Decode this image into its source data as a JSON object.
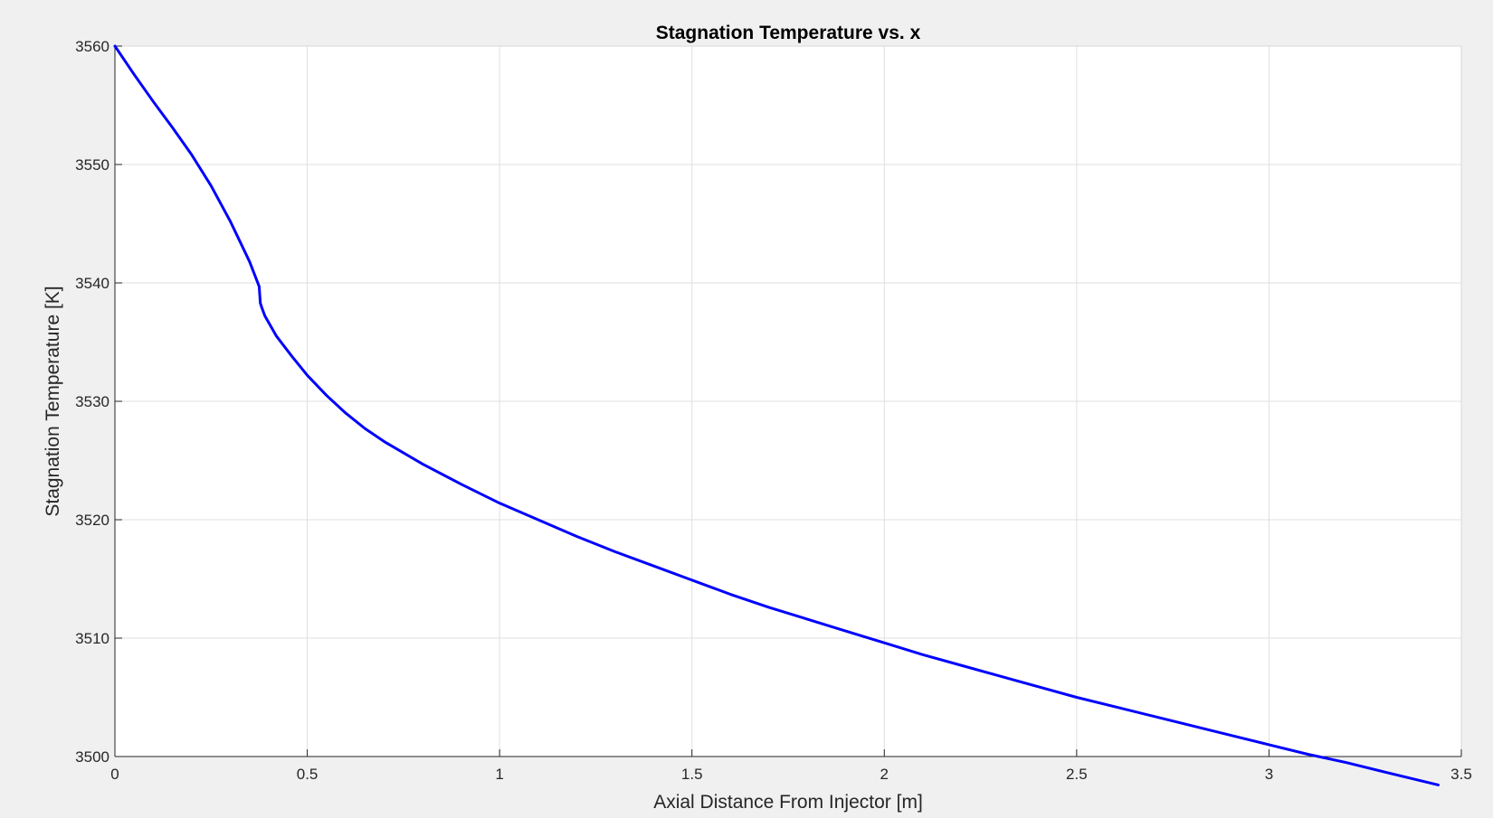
{
  "chart_data": {
    "type": "line",
    "title": "Stagnation Temperature vs. x",
    "xlabel": "Axial Distance From Injector [m]",
    "ylabel": "Stagnation Temperature [K]",
    "xlim": [
      0,
      3.5
    ],
    "ylim": [
      3500,
      3560
    ],
    "xticks": [
      0,
      0.5,
      1,
      1.5,
      2,
      2.5,
      3,
      3.5
    ],
    "xtick_labels": [
      "0",
      "0.5",
      "1",
      "1.5",
      "2",
      "2.5",
      "3",
      "3.5"
    ],
    "yticks": [
      3500,
      3510,
      3520,
      3530,
      3540,
      3550,
      3560
    ],
    "ytick_labels": [
      "3500",
      "3510",
      "3520",
      "3530",
      "3540",
      "3550",
      "3560"
    ],
    "grid": true,
    "legend": false,
    "series": [
      {
        "color": "#0000ff",
        "x": [
          0,
          0.05,
          0.1,
          0.15,
          0.2,
          0.25,
          0.3,
          0.35,
          0.375,
          0.378,
          0.382,
          0.39,
          0.42,
          0.46,
          0.5,
          0.55,
          0.6,
          0.65,
          0.7,
          0.8,
          0.9,
          1.0,
          1.1,
          1.2,
          1.3,
          1.4,
          1.5,
          1.6,
          1.7,
          1.8,
          1.9,
          2.0,
          2.1,
          2.2,
          2.3,
          2.4,
          2.5,
          2.6,
          2.7,
          2.8,
          2.9,
          3.0,
          3.1,
          3.2,
          3.3,
          3.44
        ],
        "y": [
          3560,
          3557.6,
          3555.3,
          3553.1,
          3550.8,
          3548.2,
          3545.2,
          3541.8,
          3539.7,
          3538.3,
          3537.9,
          3537.2,
          3535.5,
          3533.8,
          3532.2,
          3530.5,
          3529.0,
          3527.7,
          3526.6,
          3524.7,
          3523.0,
          3521.4,
          3520.0,
          3518.6,
          3517.3,
          3516.1,
          3514.9,
          3513.7,
          3512.6,
          3511.6,
          3510.6,
          3509.6,
          3508.6,
          3507.7,
          3506.8,
          3505.9,
          3505.0,
          3504.2,
          3503.4,
          3502.6,
          3501.8,
          3501.0,
          3500.2,
          3499.5,
          3498.7,
          3497.6
        ]
      }
    ]
  }
}
